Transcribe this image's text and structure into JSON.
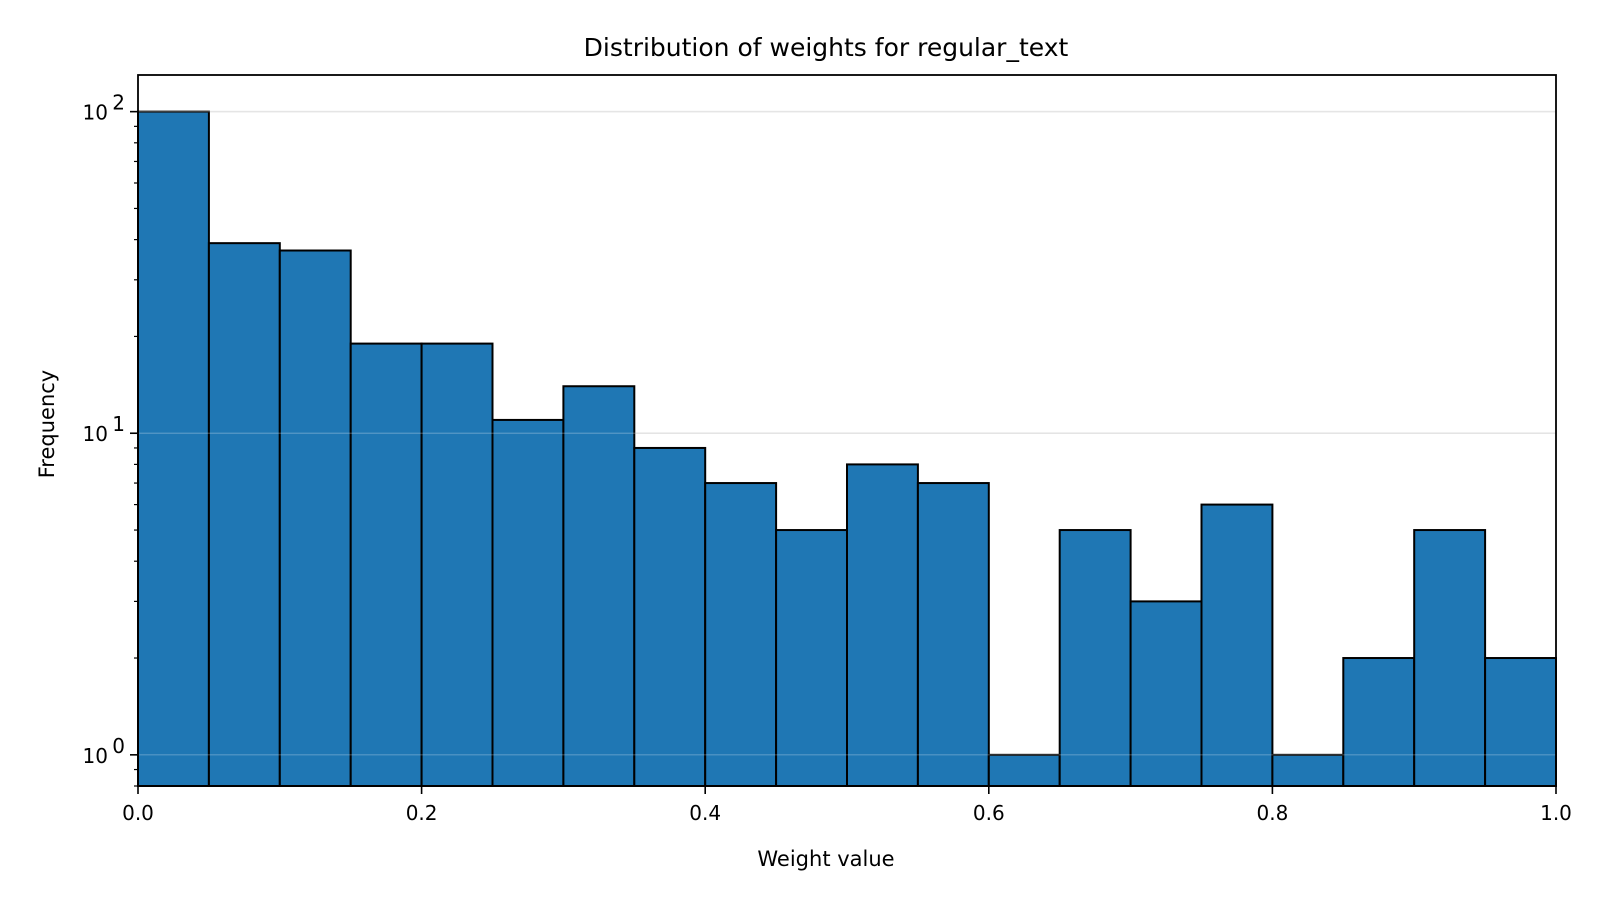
{
  "chart_data": {
    "type": "bar",
    "title": "Distribution of weights for regular_text",
    "xlabel": "Weight value",
    "ylabel": "Frequency",
    "xlim": [
      0.0,
      1.0
    ],
    "ylim": [
      0.8,
      130
    ],
    "yscale": "log",
    "grid": "y-major",
    "bar_color": "#1f77b4",
    "edge_color": "#000000",
    "bin_edges": [
      0.0,
      0.05,
      0.1,
      0.15,
      0.2,
      0.25,
      0.3,
      0.35,
      0.4,
      0.45,
      0.5,
      0.55,
      0.6,
      0.65,
      0.7,
      0.75,
      0.8,
      0.85,
      0.9,
      0.95,
      1.0
    ],
    "values": [
      100,
      39,
      37,
      19,
      19,
      11,
      14,
      9,
      7,
      5,
      8,
      7,
      1,
      5,
      3,
      6,
      1,
      2,
      5,
      2
    ],
    "x_ticks": [
      {
        "value": 0.0,
        "label": "0.0"
      },
      {
        "value": 0.2,
        "label": "0.2"
      },
      {
        "value": 0.4,
        "label": "0.4"
      },
      {
        "value": 0.6,
        "label": "0.6"
      },
      {
        "value": 0.8,
        "label": "0.8"
      },
      {
        "value": 1.0,
        "label": "1.0"
      }
    ],
    "y_ticks": [
      {
        "value": 1,
        "base": "10",
        "exp": "0"
      },
      {
        "value": 10,
        "base": "10",
        "exp": "1"
      },
      {
        "value": 100,
        "base": "10",
        "exp": "2"
      }
    ]
  }
}
